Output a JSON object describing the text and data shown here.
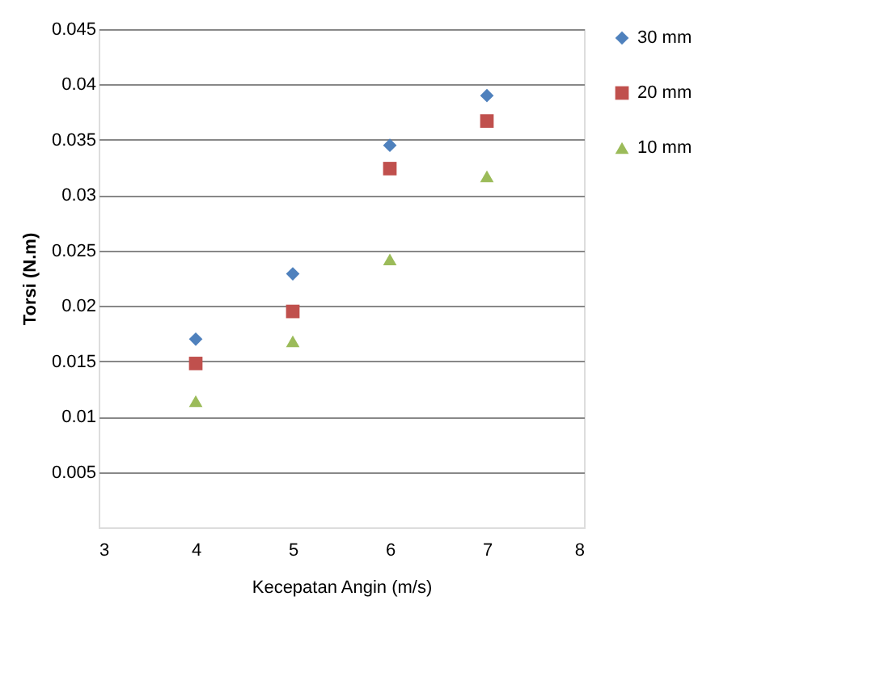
{
  "chart_data": {
    "type": "scatter",
    "xlabel": "Kecepatan Angin (m/s)",
    "ylabel": "Torsi (N.m)",
    "x": [
      4,
      5,
      6,
      7
    ],
    "series": [
      {
        "name": "30 mm",
        "color": "#4f81bd",
        "marker": "diamond",
        "values": [
          0.017,
          0.0229,
          0.0345,
          0.039
        ]
      },
      {
        "name": "20 mm",
        "color": "#c0504d",
        "marker": "square",
        "values": [
          0.0148,
          0.0195,
          0.0324,
          0.0367
        ]
      },
      {
        "name": "10 mm",
        "color": "#9bbb59",
        "marker": "triangle",
        "values": [
          0.0114,
          0.0168,
          0.0242,
          0.0317
        ]
      }
    ],
    "xlim": [
      3,
      8
    ],
    "xticks": [
      3,
      4,
      5,
      6,
      7,
      8
    ],
    "ylim": [
      0,
      0.045
    ],
    "yticks": [
      0.005,
      0.01,
      0.015,
      0.02,
      0.025,
      0.03,
      0.035,
      0.04,
      0.045
    ],
    "grid": "y",
    "legend": "right"
  }
}
